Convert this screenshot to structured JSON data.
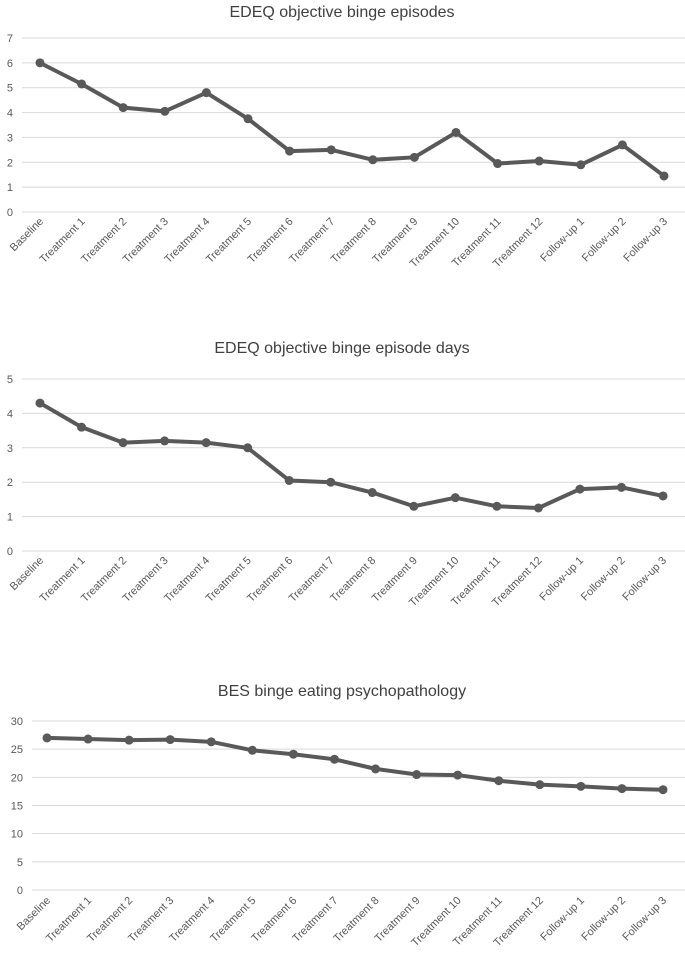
{
  "chart_data": [
    {
      "type": "line",
      "title": "EDEQ objective binge episodes",
      "categories": [
        "Baseline",
        "Treatment 1",
        "Treatment 2",
        "Treatment 3",
        "Treatment 4",
        "Treatment 5",
        "Treatment 6",
        "Treatment 7",
        "Treatment 8",
        "Treatment 9",
        "Treatment 10",
        "Treatment 11",
        "Treatment 12",
        "Follow-up 1",
        "Follow-up 2",
        "Follow-up 3"
      ],
      "values": [
        6.0,
        5.15,
        4.2,
        4.05,
        4.8,
        3.75,
        2.45,
        2.5,
        2.1,
        2.2,
        3.2,
        1.95,
        2.05,
        1.9,
        2.7,
        1.45
      ],
      "ylim": [
        0,
        7
      ],
      "yticks": [
        0,
        1,
        2,
        3,
        4,
        5,
        6,
        7
      ],
      "xlabel": "",
      "ylabel": "",
      "grid": true,
      "color": "#595959"
    },
    {
      "type": "line",
      "title": "EDEQ objective binge episode days",
      "categories": [
        "Baseline",
        "Treatment 1",
        "Treatment 2",
        "Treatment 3",
        "Treatment 4",
        "Treatment 5",
        "Treatment 6",
        "Treatment 7",
        "Treatment 8",
        "Treatment 9",
        "Treatment 10",
        "Treatment 11",
        "Treatment 12",
        "Follow-up 1",
        "Follow-up 2",
        "Follow-up 3"
      ],
      "values": [
        4.3,
        3.6,
        3.15,
        3.2,
        3.15,
        3.0,
        2.05,
        2.0,
        1.7,
        1.3,
        1.55,
        1.3,
        1.25,
        1.8,
        1.85,
        1.6
      ],
      "ylim": [
        0,
        5
      ],
      "yticks": [
        0,
        1,
        2,
        3,
        4,
        5
      ],
      "xlabel": "",
      "ylabel": "",
      "grid": true,
      "color": "#595959"
    },
    {
      "type": "line",
      "title": "BES binge eating psychopathology",
      "categories": [
        "Baseline",
        "Treatment 1",
        "Treatment 2",
        "Treatment 3",
        "Treatment 4",
        "Treatment 5",
        "Treatment 6",
        "Treatment 7",
        "Treatment 8",
        "Treatment 9",
        "Treatment 10",
        "Treatment 11",
        "Treatment 12",
        "Follow-up 1",
        "Follow-up 2",
        "Follow-up 3"
      ],
      "values": [
        27.0,
        26.8,
        26.6,
        26.7,
        26.3,
        24.8,
        24.1,
        23.2,
        21.5,
        20.5,
        20.4,
        19.4,
        18.7,
        18.4,
        18.0,
        17.8
      ],
      "ylim": [
        0,
        30
      ],
      "yticks": [
        0,
        5,
        10,
        15,
        20,
        25,
        30
      ],
      "xlabel": "",
      "ylabel": "",
      "grid": true,
      "color": "#595959"
    }
  ]
}
